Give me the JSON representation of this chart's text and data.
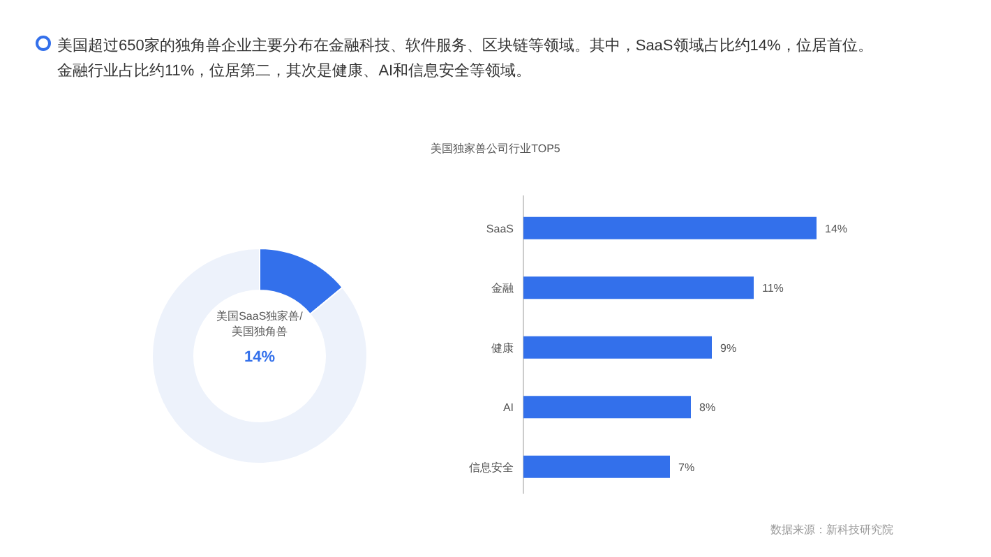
{
  "chart_data": [
    {
      "type": "donut",
      "title": "美国SaaS独家兽/美国独角兽",
      "categories": [
        null,
        null
      ],
      "values": [
        14,
        86
      ],
      "colors": [
        "#3370eb",
        "#edf2fb"
      ],
      "subtitle": "14%",
      "annotations": [
        "美国超过650家的独角兽企业主要分布在金融科技、软件服务、区块链等领域。其中，SaaS领域占比约14%，位居首位。",
        "金融行业占比约11%，位居第二，其次是健康、AI和信息安全等领域。"
      ]
    },
    {
      "type": "bar",
      "orientation": "horizontal",
      "title": "美国独家兽公司行业TOP5",
      "categories": [
        "SaaS",
        "金融",
        "健康",
        "AI",
        "信息安全"
      ],
      "values": [
        14,
        11,
        9,
        8,
        7
      ],
      "color": "#3370eb",
      "value_labels": [
        "14%",
        "11%",
        "9%",
        "8%",
        "7%"
      ],
      "annotations": [
        "数据来源：新科技研究院"
      ]
    }
  ]
}
